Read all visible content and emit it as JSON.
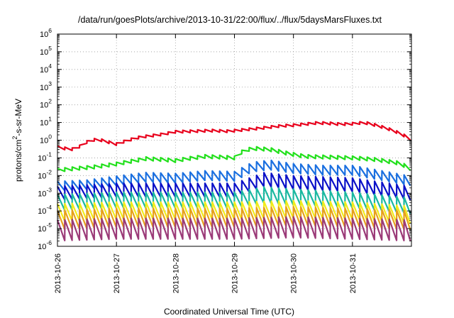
{
  "chart_data": {
    "type": "line",
    "title": "/data/run/goesPlots/archive/2013-10-31/22:00/flux/../flux/5daysMarsFluxes.txt",
    "xlabel": "Coordinated Universal Time (UTC)",
    "ylabel": {
      "base": "protons/cm",
      "sup": "2",
      "rest": "-s-sr-MeV"
    },
    "x_range": [
      "2013-10-26",
      "2013-11-01"
    ],
    "x_ticks": [
      "2013-10-26",
      "2013-10-27",
      "2013-10-28",
      "2013-10-29",
      "2013-10-30",
      "2013-10-31"
    ],
    "y_scale": "log",
    "y_range": [
      1e-06,
      1000000.0
    ],
    "y_tick_exponents": [
      -6,
      -5,
      -4,
      -3,
      -2,
      -1,
      0,
      1,
      2,
      3,
      4,
      5,
      6
    ],
    "y_tick_labels": [
      {
        "base": "10",
        "exp": "-6"
      },
      {
        "base": "10",
        "exp": "-5"
      },
      {
        "base": "10",
        "exp": "-4"
      },
      {
        "base": "10",
        "exp": "-3"
      },
      {
        "base": "10",
        "exp": "-2"
      },
      {
        "base": "10",
        "exp": "-1"
      },
      {
        "base": "10",
        "exp": "0"
      },
      {
        "base": "10",
        "exp": "1"
      },
      {
        "base": "10",
        "exp": "2"
      },
      {
        "base": "10",
        "exp": "3"
      },
      {
        "base": "10",
        "exp": "4"
      },
      {
        "base": "10",
        "exp": "5"
      },
      {
        "base": "10",
        "exp": "6"
      }
    ],
    "grid": "dotted",
    "legend": "none",
    "sawtooth_period_days": 0.125,
    "series": [
      {
        "color": "#e8001c",
        "x": [
          0,
          0.1,
          0.2,
          0.3,
          0.4,
          0.55,
          0.7,
          0.85,
          1.0,
          1.2,
          1.4,
          1.6,
          1.8,
          2.0,
          2.3,
          2.6,
          2.9,
          3.2,
          3.5,
          3.8,
          4.0,
          4.2,
          4.4,
          4.6,
          4.8,
          5.0,
          5.2,
          5.4,
          5.6,
          5.8,
          5.98
        ],
        "y": [
          0.4,
          0.35,
          0.32,
          0.3,
          0.5,
          1.0,
          1.1,
          0.8,
          0.6,
          1.0,
          1.5,
          1.8,
          2.2,
          3.0,
          3.2,
          3.5,
          3.2,
          4.0,
          5.0,
          6.5,
          7.0,
          8.0,
          9.5,
          9.0,
          8.0,
          8.5,
          10.0,
          7.0,
          4.5,
          2.5,
          1.2
        ],
        "amplitude": 1.4
      },
      {
        "color": "#22e01c",
        "x": [
          0,
          0.3,
          0.6,
          1.0,
          1.2,
          1.5,
          1.8,
          2.0,
          2.2,
          2.5,
          2.8,
          3.0,
          3.1,
          3.3,
          3.6,
          3.9,
          4.2,
          4.6,
          5.0,
          5.4,
          5.8,
          5.98
        ],
        "y": [
          0.02,
          0.025,
          0.03,
          0.045,
          0.06,
          0.09,
          0.08,
          0.07,
          0.09,
          0.12,
          0.11,
          0.1,
          0.2,
          0.35,
          0.3,
          0.18,
          0.12,
          0.11,
          0.1,
          0.08,
          0.05,
          0.025
        ],
        "amplitude": 1.6
      },
      {
        "color": "#1a6fe0",
        "x": [
          0,
          0.5,
          1.0,
          1.5,
          2.0,
          2.5,
          3.0,
          3.3,
          3.6,
          4.0,
          4.5,
          5.0,
          5.5,
          5.98
        ],
        "y": [
          0.0025,
          0.003,
          0.005,
          0.008,
          0.007,
          0.01,
          0.009,
          0.03,
          0.04,
          0.025,
          0.02,
          0.02,
          0.01,
          0.005
        ],
        "amplitude": 3.5
      },
      {
        "color": "#0a10c8",
        "x": [
          0,
          1.0,
          2.0,
          3.0,
          3.5,
          4.0,
          5.0,
          5.98
        ],
        "y": [
          0.001,
          0.0015,
          0.0015,
          0.0015,
          0.006,
          0.004,
          0.003,
          0.001
        ],
        "amplitude": 6.0
      },
      {
        "color": "#1ab8a0",
        "x": [
          0,
          1.0,
          2.0,
          3.0,
          3.5,
          4.0,
          5.0,
          5.98
        ],
        "y": [
          0.0003,
          0.0004,
          0.0004,
          0.0004,
          0.0008,
          0.0006,
          0.0004,
          0.0002
        ],
        "amplitude": 8.0
      },
      {
        "color": "#f2ec1a",
        "x": [
          0,
          1.0,
          2.0,
          3.0,
          4.0,
          5.0,
          5.98
        ],
        "y": [
          8e-05,
          0.0001,
          0.0001,
          0.0001,
          0.00012,
          0.0001,
          6e-05
        ],
        "amplitude": 10.0
      },
      {
        "color": "#e7a11c",
        "x": [
          0,
          1.0,
          2.0,
          3.0,
          4.0,
          5.0,
          5.98
        ],
        "y": [
          3e-05,
          4e-05,
          4e-05,
          4e-05,
          5e-05,
          4e-05,
          3e-05
        ],
        "amplitude": 12.0
      },
      {
        "color": "#9b3a78",
        "x": [
          0,
          1.0,
          2.0,
          3.0,
          4.0,
          5.0,
          5.98
        ],
        "y": [
          8e-06,
          1e-05,
          1e-05,
          1e-05,
          1.2e-05,
          1e-05,
          8e-06
        ],
        "amplitude": 15.0
      }
    ]
  }
}
